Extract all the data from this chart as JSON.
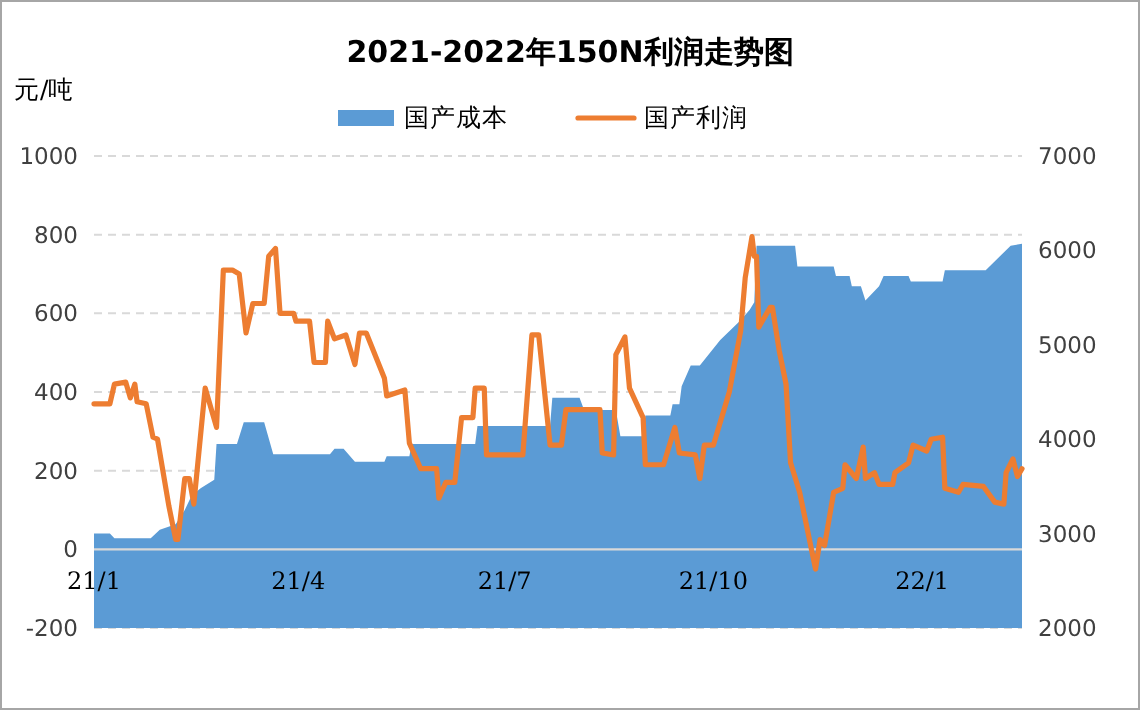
{
  "chart_data": {
    "type": "line",
    "title": "2021-2022年150N利润走势图",
    "ylabel": "元/吨",
    "legend": "top",
    "grid": "y",
    "xlim": [
      "2021-01-01",
      "2022-02-14"
    ],
    "xticks": [
      {
        "value": "2021-01-01",
        "label": "21/1"
      },
      {
        "value": "2021-04-01",
        "label": "21/4"
      },
      {
        "value": "2021-07-01",
        "label": "21/7"
      },
      {
        "value": "2021-10-01",
        "label": "21/10"
      },
      {
        "value": "2022-01-01",
        "label": "22/1"
      }
    ],
    "ylim": [
      -200,
      1000
    ],
    "yticks": [
      -200,
      0,
      200,
      400,
      600,
      800,
      1000
    ],
    "y2lim": [
      2000,
      7000
    ],
    "y2ticks": [
      2000,
      3000,
      4000,
      5000,
      6000,
      7000
    ],
    "series": [
      {
        "name": "国产成本",
        "type": "area",
        "axis": "y2",
        "color": "#5b9bd5",
        "x": [
          "2021-01-01",
          "2021-01-08",
          "2021-01-10",
          "2021-01-26",
          "2021-01-30",
          "2021-02-06",
          "2021-02-10",
          "2021-02-13",
          "2021-02-17",
          "2021-02-23",
          "2021-02-24",
          "2021-03-05",
          "2021-03-08",
          "2021-03-17",
          "2021-03-21",
          "2021-04-15",
          "2021-04-17",
          "2021-04-21",
          "2021-04-26",
          "2021-05-09",
          "2021-05-10",
          "2021-05-20",
          "2021-05-21",
          "2021-06-18",
          "2021-06-19",
          "2021-07-21",
          "2021-07-22",
          "2021-08-03",
          "2021-08-05",
          "2021-08-19",
          "2021-08-21",
          "2021-08-31",
          "2021-09-01",
          "2021-09-12",
          "2021-09-13",
          "2021-09-16",
          "2021-09-17",
          "2021-09-21",
          "2021-09-25",
          "2021-10-04",
          "2021-10-13",
          "2021-10-17",
          "2021-10-19",
          "2021-10-20",
          "2021-11-06",
          "2021-11-07",
          "2021-11-23",
          "2021-11-24",
          "2021-11-30",
          "2021-12-01",
          "2021-12-05",
          "2021-12-07",
          "2021-12-13",
          "2021-12-15",
          "2021-12-26",
          "2021-12-27",
          "2022-01-10",
          "2022-01-11",
          "2022-01-29",
          "2022-02-09",
          "2022-02-14"
        ],
        "values": [
          3000,
          3000,
          2950,
          2950,
          3040,
          3100,
          3250,
          3400,
          3480,
          3570,
          3950,
          3950,
          4180,
          4180,
          3840,
          3840,
          3900,
          3900,
          3760,
          3760,
          3820,
          3820,
          3950,
          3950,
          4140,
          4140,
          4440,
          4440,
          4310,
          4310,
          4030,
          4030,
          4250,
          4250,
          4370,
          4370,
          4560,
          4780,
          4780,
          5050,
          5260,
          5370,
          5450,
          6050,
          6050,
          5830,
          5830,
          5730,
          5730,
          5620,
          5620,
          5470,
          5620,
          5730,
          5730,
          5670,
          5670,
          5790,
          5790,
          6050,
          6070
        ]
      },
      {
        "name": "国产利润",
        "color": "#ed7d31",
        "x": [
          "2021-01-01",
          "2021-01-08",
          "2021-01-10",
          "2021-01-15",
          "2021-01-17",
          "2021-01-19",
          "2021-01-20",
          "2021-01-24",
          "2021-01-27",
          "2021-01-29",
          "2021-02-03",
          "2021-02-06",
          "2021-02-07",
          "2021-02-10",
          "2021-02-12",
          "2021-02-14",
          "2021-02-19",
          "2021-02-24",
          "2021-02-27",
          "2021-03-03",
          "2021-03-06",
          "2021-03-09",
          "2021-03-12",
          "2021-03-17",
          "2021-03-19",
          "2021-03-22",
          "2021-03-24",
          "2021-03-30",
          "2021-03-31",
          "2021-04-06",
          "2021-04-08",
          "2021-04-13",
          "2021-04-14",
          "2021-04-17",
          "2021-04-22",
          "2021-04-26",
          "2021-04-28",
          "2021-05-01",
          "2021-05-09",
          "2021-05-10",
          "2021-05-18",
          "2021-05-20",
          "2021-05-25",
          "2021-06-01",
          "2021-06-02",
          "2021-06-05",
          "2021-06-09",
          "2021-06-12",
          "2021-06-17",
          "2021-06-18",
          "2021-06-22",
          "2021-06-23",
          "2021-07-09",
          "2021-07-13",
          "2021-07-16",
          "2021-07-21",
          "2021-07-26",
          "2021-07-28",
          "2021-08-12",
          "2021-08-13",
          "2021-08-18",
          "2021-08-19",
          "2021-08-23",
          "2021-08-25",
          "2021-08-31",
          "2021-09-01",
          "2021-09-09",
          "2021-09-14",
          "2021-09-16",
          "2021-09-23",
          "2021-09-25",
          "2021-09-27",
          "2021-10-01",
          "2021-10-08",
          "2021-10-13",
          "2021-10-15",
          "2021-10-18",
          "2021-10-19",
          "2021-10-20",
          "2021-10-21",
          "2021-10-26",
          "2021-10-27",
          "2021-10-30",
          "2021-11-02",
          "2021-11-04",
          "2021-11-08",
          "2021-11-15",
          "2021-11-17",
          "2021-11-19",
          "2021-11-23",
          "2021-11-27",
          "2021-11-28",
          "2021-12-03",
          "2021-12-06",
          "2021-12-07",
          "2021-12-11",
          "2021-12-13",
          "2021-12-19",
          "2021-12-20",
          "2021-12-26",
          "2021-12-28",
          "2022-01-03",
          "2022-01-05",
          "2022-01-10",
          "2022-01-11",
          "2022-01-17",
          "2022-01-19",
          "2022-01-28",
          "2022-02-02",
          "2022-02-06",
          "2022-02-07",
          "2022-02-10",
          "2022-02-12",
          "2022-02-14"
        ],
        "values": [
          370,
          370,
          420,
          425,
          385,
          420,
          375,
          370,
          285,
          280,
          110,
          25,
          25,
          180,
          180,
          115,
          410,
          310,
          710,
          710,
          700,
          550,
          625,
          625,
          745,
          765,
          600,
          600,
          580,
          580,
          475,
          475,
          580,
          535,
          545,
          470,
          550,
          550,
          435,
          390,
          405,
          270,
          205,
          205,
          130,
          170,
          170,
          335,
          335,
          410,
          410,
          240,
          240,
          545,
          545,
          265,
          265,
          355,
          355,
          245,
          240,
          495,
          540,
          410,
          335,
          215,
          215,
          310,
          245,
          240,
          180,
          265,
          265,
          400,
          555,
          690,
          795,
          745,
          745,
          565,
          615,
          615,
          505,
          420,
          220,
          145,
          -50,
          25,
          10,
          145,
          155,
          215,
          180,
          260,
          180,
          195,
          165,
          165,
          195,
          220,
          265,
          250,
          280,
          285,
          155,
          145,
          165,
          160,
          120,
          115,
          195,
          230,
          185,
          205
        ]
      }
    ]
  }
}
